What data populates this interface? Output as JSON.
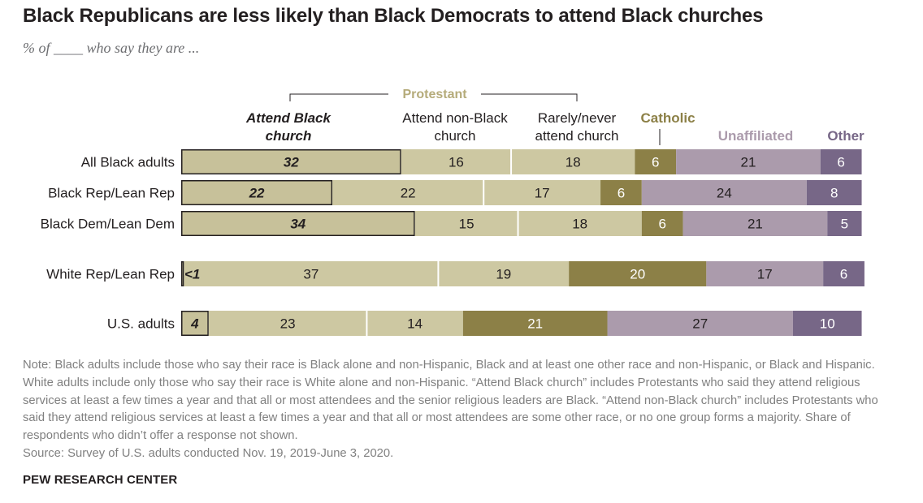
{
  "title": "Black Republicans are less likely than Black Democrats to attend Black churches",
  "subtitle": "% of ____ who say they are ...",
  "note": "Note: Black adults include those who say their race is Black alone and non-Hispanic, Black and at least one other race and non-Hispanic, or Black and Hispanic. White adults include only those who say their race is White alone and non-Hispanic. “Attend Black church” includes Protestants who said they attend religious services at least a few times a year and that all or most attendees and the senior religious leaders are Black. “Attend non-Black church” includes Protestants who said they attend religious services at least a few times a year and that all or most attendees are some other race, or no one group forms a majority. Share of respondents who didn’t offer a response not shown.",
  "source": "Source: Survey of U.S. adults conducted Nov. 19, 2019-June 3, 2020.",
  "brand": "PEW RESEARCH CENTER",
  "chart_data": {
    "type": "bar",
    "orientation": "horizontal",
    "stacked": true,
    "group_label": "Protestant",
    "categories": [
      "All Black adults",
      "Black Rep/Lean Rep",
      "Black Dem/Lean Dem",
      "White Rep/Lean Rep",
      "U.S. adults"
    ],
    "series": [
      {
        "name": "Attend Black church",
        "header": [
          "Attend Black",
          "church"
        ],
        "color": "#c7c19a",
        "values": [
          32,
          22,
          34,
          0.4,
          4
        ],
        "labels": [
          "32",
          "22",
          "34",
          "<1",
          "4"
        ]
      },
      {
        "name": "Attend non-Black church",
        "header": [
          "Attend non-Black",
          "church"
        ],
        "color": "#cdc8a2",
        "values": [
          16,
          22,
          15,
          37,
          23
        ],
        "labels": [
          "16",
          "22",
          "15",
          "37",
          "23"
        ]
      },
      {
        "name": "Rarely/never attend church",
        "header": [
          "Rarely/never",
          "attend church"
        ],
        "color": "#cdc8a2",
        "values": [
          18,
          17,
          18,
          19,
          14
        ],
        "labels": [
          "18",
          "17",
          "18",
          "19",
          "14"
        ]
      },
      {
        "name": "Catholic",
        "header": [
          "Catholic"
        ],
        "color": "#8c8047",
        "values": [
          6,
          6,
          6,
          20,
          21
        ],
        "labels": [
          "6",
          "6",
          "6",
          "20",
          "21"
        ]
      },
      {
        "name": "Unaffiliated",
        "header": [
          "Unaffiliated"
        ],
        "color": "#ab9bac",
        "values": [
          21,
          24,
          21,
          17,
          27
        ],
        "labels": [
          "21",
          "24",
          "21",
          "17",
          "27"
        ]
      },
      {
        "name": "Other",
        "header": [
          "Other"
        ],
        "color": "#776787",
        "values": [
          6,
          8,
          5,
          6,
          10
        ],
        "labels": [
          "6",
          "8",
          "5",
          "6",
          "10"
        ]
      }
    ],
    "header_colors": {
      "protestant": "#b5ab7a",
      "catholic": "#8c8047",
      "unaffiliated": "#ab9bac",
      "other": "#776787"
    },
    "xlim": [
      0,
      100
    ],
    "legend": "column headers above bars",
    "grid": false
  }
}
